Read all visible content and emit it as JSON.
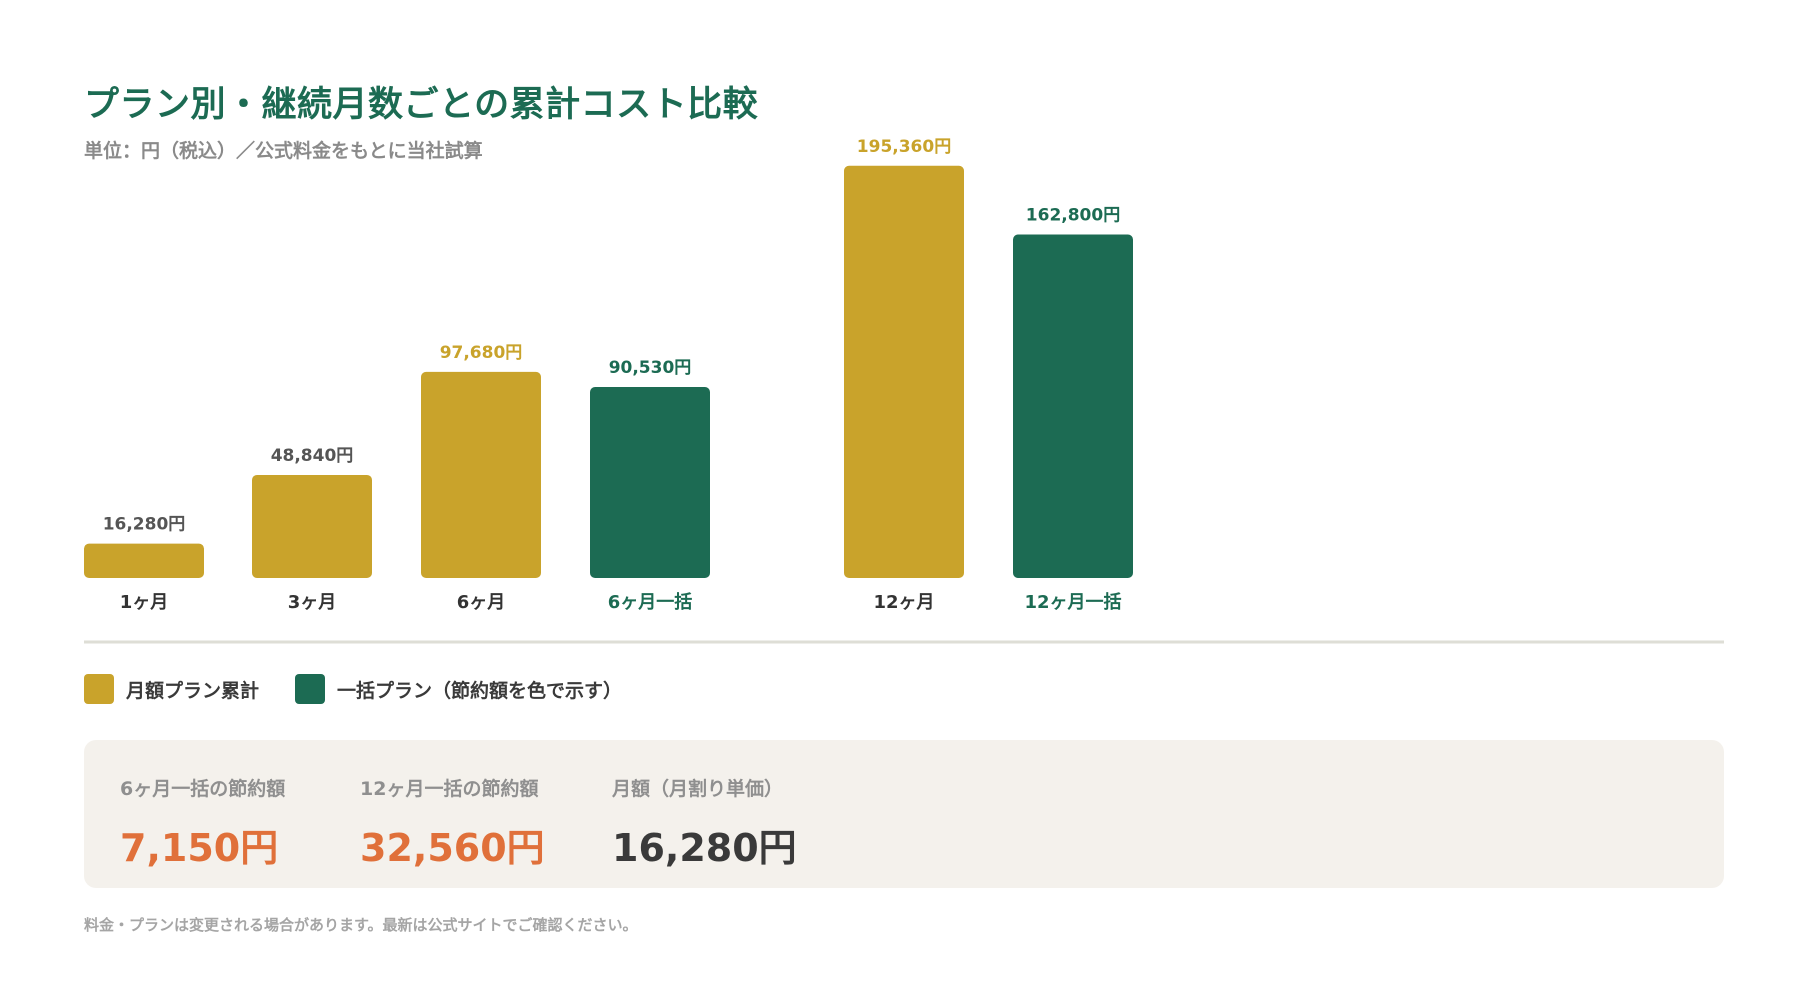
{
  "header": {
    "title": "プラン別・継続月数ごとの累計コスト比較",
    "subtitle": "単位：円（税込）／公式料金をもとに当社試算"
  },
  "colors": {
    "monthly": "#c9a32b",
    "lump": "#1c6b53",
    "category_text_default": "#333333",
    "value_text_default": "#555555",
    "saving_value": "#e0703a",
    "neutral_value": "#3a3a3a",
    "baseline": "#deded6"
  },
  "chart_data": {
    "type": "bar",
    "ylim": [
      0,
      200000
    ],
    "bars": [
      {
        "category": "1ヶ月",
        "value": 16280,
        "value_label": "16,280円",
        "series": "monthly",
        "label_tone": "default"
      },
      {
        "category": "3ヶ月",
        "value": 48840,
        "value_label": "48,840円",
        "series": "monthly",
        "label_tone": "default"
      },
      {
        "category": "6ヶ月",
        "value": 97680,
        "value_label": "97,680円",
        "series": "monthly",
        "label_tone": "accent"
      },
      {
        "category": "6ヶ月一括",
        "value": 90530,
        "value_label": "90,530円",
        "series": "lump",
        "label_tone": "accent"
      },
      {
        "category": "12ヶ月",
        "value": 195360,
        "value_label": "195,360円",
        "series": "monthly",
        "label_tone": "accent"
      },
      {
        "category": "12ヶ月一括",
        "value": 162800,
        "value_label": "162,800円",
        "series": "lump",
        "label_tone": "accent"
      }
    ],
    "legend": [
      {
        "series": "monthly",
        "label": "月額プラン累計"
      },
      {
        "series": "lump",
        "label": "一括プラン（節約額を色で示す）"
      }
    ]
  },
  "summary": {
    "items": [
      {
        "label": "6ヶ月一括の節約額",
        "value": "7,150円",
        "tone": "saving"
      },
      {
        "label": "12ヶ月一括の節約額",
        "value": "32,560円",
        "tone": "saving"
      },
      {
        "label": "月額（月割り単価）",
        "value": "16,280円",
        "tone": "neutral"
      }
    ]
  },
  "footnote": "料金・プランは変更される場合があります。最新は公式サイトでご確認ください。"
}
